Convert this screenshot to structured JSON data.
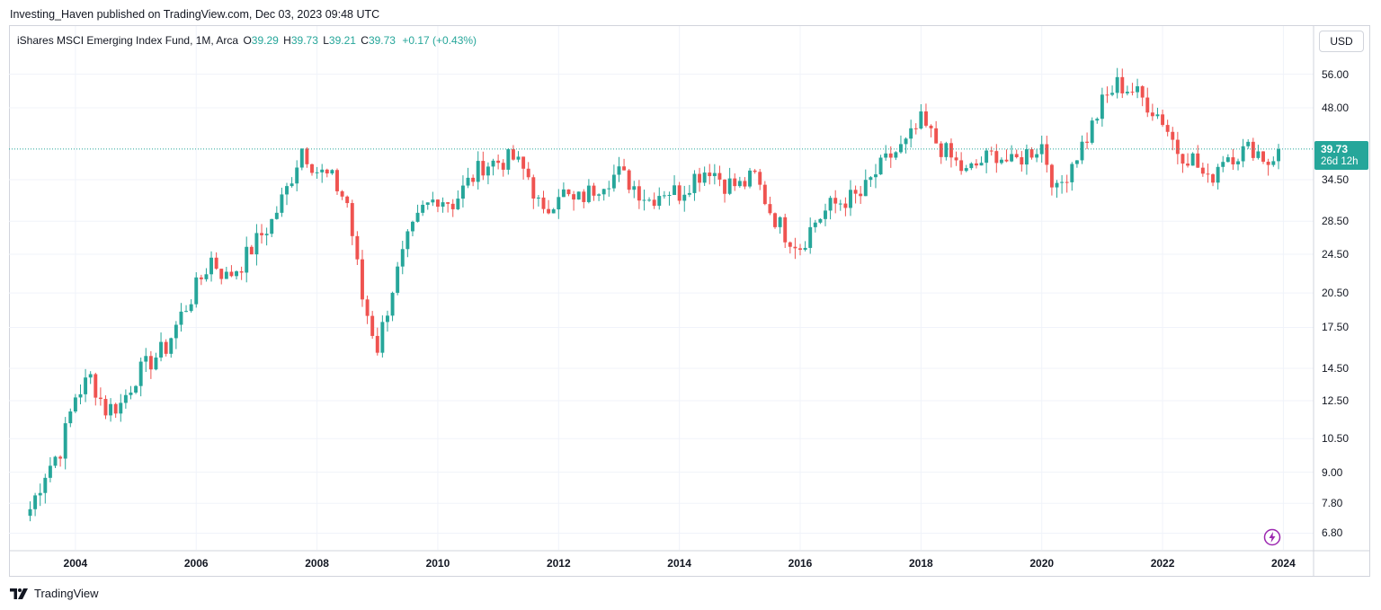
{
  "header": {
    "published": "Investing_Haven published on TradingView.com, Dec 03, 2023 09:48 UTC"
  },
  "legend": {
    "symbol": "iShares MSCI Emerging Index Fund, 1M, Arca",
    "o_label": "O",
    "o": "39.29",
    "h_label": "H",
    "h": "39.73",
    "l_label": "L",
    "l": "39.21",
    "c_label": "C",
    "c": "39.73",
    "change": "+0.17 (+0.43%)"
  },
  "currency": "USD",
  "last_price": {
    "price": "39.73",
    "countdown": "26d 12h"
  },
  "footer": {
    "brand": "TradingView"
  },
  "colors": {
    "up": "#26a69a",
    "down": "#ef5350",
    "grid": "#f0f3fa",
    "accent": "#9c27b0"
  },
  "chart_data": {
    "type": "candlestick",
    "scale": "log",
    "x_ticks": [
      "2004",
      "2006",
      "2008",
      "2010",
      "2012",
      "2014",
      "2016",
      "2018",
      "2020",
      "2022",
      "2024"
    ],
    "y_ticks": [
      "56.00",
      "48.00",
      "34.50",
      "28.50",
      "24.50",
      "20.50",
      "17.50",
      "14.50",
      "12.50",
      "10.50",
      "9.00",
      "7.80",
      "6.80"
    ],
    "ylim": [
      6.3,
      62
    ],
    "xlim": [
      2002.9,
      2024.5
    ],
    "last_price": 39.73,
    "series": [
      {
        "t": 2003.25,
        "c": 7.6
      },
      {
        "t": 2003.5,
        "c": 9.0
      },
      {
        "t": 2003.75,
        "c": 10.0
      },
      {
        "t": 2004.0,
        "c": 12.8
      },
      {
        "t": 2004.25,
        "c": 13.9
      },
      {
        "t": 2004.5,
        "c": 12.0
      },
      {
        "t": 2004.75,
        "c": 12.3
      },
      {
        "t": 2005.0,
        "c": 14.0
      },
      {
        "t": 2005.25,
        "c": 15.0
      },
      {
        "t": 2005.5,
        "c": 16.0
      },
      {
        "t": 2005.75,
        "c": 18.5
      },
      {
        "t": 2006.0,
        "c": 21.0
      },
      {
        "t": 2006.25,
        "c": 24.0
      },
      {
        "t": 2006.5,
        "c": 22.0
      },
      {
        "t": 2006.75,
        "c": 23.5
      },
      {
        "t": 2007.0,
        "c": 26.0
      },
      {
        "t": 2007.25,
        "c": 28.5
      },
      {
        "t": 2007.5,
        "c": 33.0
      },
      {
        "t": 2007.75,
        "c": 40.0
      },
      {
        "t": 2008.0,
        "c": 36.0
      },
      {
        "t": 2008.25,
        "c": 34.5
      },
      {
        "t": 2008.5,
        "c": 31.0
      },
      {
        "t": 2008.75,
        "c": 20.0
      },
      {
        "t": 2009.0,
        "c": 16.0
      },
      {
        "t": 2009.25,
        "c": 21.0
      },
      {
        "t": 2009.5,
        "c": 26.0
      },
      {
        "t": 2009.75,
        "c": 30.0
      },
      {
        "t": 2010.0,
        "c": 32.0
      },
      {
        "t": 2010.25,
        "c": 31.0
      },
      {
        "t": 2010.5,
        "c": 34.0
      },
      {
        "t": 2010.75,
        "c": 37.0
      },
      {
        "t": 2011.0,
        "c": 37.5
      },
      {
        "t": 2011.25,
        "c": 38.0
      },
      {
        "t": 2011.5,
        "c": 35.0
      },
      {
        "t": 2011.75,
        "c": 29.0
      },
      {
        "t": 2012.0,
        "c": 33.0
      },
      {
        "t": 2012.25,
        "c": 31.0
      },
      {
        "t": 2012.5,
        "c": 32.5
      },
      {
        "t": 2012.75,
        "c": 34.5
      },
      {
        "t": 2013.0,
        "c": 35.5
      },
      {
        "t": 2013.25,
        "c": 33.5
      },
      {
        "t": 2013.5,
        "c": 31.5
      },
      {
        "t": 2013.75,
        "c": 33.0
      },
      {
        "t": 2014.0,
        "c": 32.5
      },
      {
        "t": 2014.25,
        "c": 35.0
      },
      {
        "t": 2014.5,
        "c": 36.5
      },
      {
        "t": 2014.75,
        "c": 34.0
      },
      {
        "t": 2015.0,
        "c": 33.5
      },
      {
        "t": 2015.25,
        "c": 35.0
      },
      {
        "t": 2015.5,
        "c": 30.0
      },
      {
        "t": 2015.75,
        "c": 27.0
      },
      {
        "t": 2016.0,
        "c": 25.5
      },
      {
        "t": 2016.25,
        "c": 28.5
      },
      {
        "t": 2016.5,
        "c": 30.5
      },
      {
        "t": 2016.75,
        "c": 31.5
      },
      {
        "t": 2017.0,
        "c": 32.0
      },
      {
        "t": 2017.25,
        "c": 35.5
      },
      {
        "t": 2017.5,
        "c": 38.5
      },
      {
        "t": 2017.75,
        "c": 40.5
      },
      {
        "t": 2018.0,
        "c": 45.0
      },
      {
        "t": 2018.25,
        "c": 41.0
      },
      {
        "t": 2018.5,
        "c": 38.0
      },
      {
        "t": 2018.75,
        "c": 35.5
      },
      {
        "t": 2019.0,
        "c": 37.5
      },
      {
        "t": 2019.25,
        "c": 39.0
      },
      {
        "t": 2019.5,
        "c": 37.0
      },
      {
        "t": 2019.75,
        "c": 39.0
      },
      {
        "t": 2020.0,
        "c": 40.5
      },
      {
        "t": 2020.25,
        "c": 32.5
      },
      {
        "t": 2020.5,
        "c": 37.5
      },
      {
        "t": 2020.75,
        "c": 42.0
      },
      {
        "t": 2021.0,
        "c": 49.0
      },
      {
        "t": 2021.25,
        "c": 53.5
      },
      {
        "t": 2021.5,
        "c": 52.0
      },
      {
        "t": 2021.75,
        "c": 49.0
      },
      {
        "t": 2022.0,
        "c": 45.5
      },
      {
        "t": 2022.25,
        "c": 39.5
      },
      {
        "t": 2022.5,
        "c": 38.0
      },
      {
        "t": 2022.75,
        "c": 34.0
      },
      {
        "t": 2023.0,
        "c": 38.5
      },
      {
        "t": 2023.25,
        "c": 39.0
      },
      {
        "t": 2023.5,
        "c": 40.0
      },
      {
        "t": 2023.75,
        "c": 37.5
      },
      {
        "t": 2023.92,
        "c": 39.73
      }
    ]
  }
}
